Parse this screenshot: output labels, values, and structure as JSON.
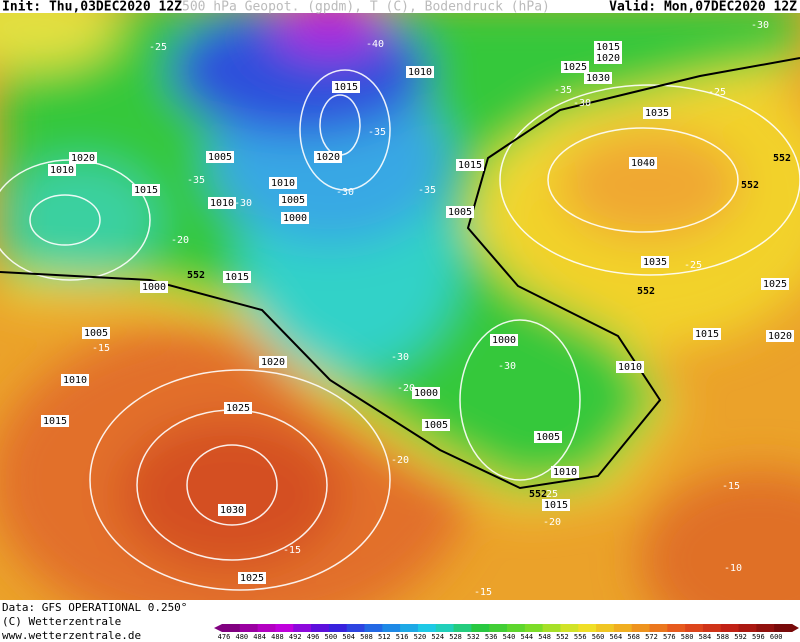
{
  "map": {
    "header": {
      "init": "Init: Thu,03DEC2020 12Z",
      "title": "500 hPa Geopot. (gpdm), T (C), Bodendruck (hPa)",
      "valid": "Valid: Mon,07DEC2020 12Z"
    },
    "pressure_labels": [
      1015,
      1020,
      1025,
      1030,
      1010,
      1015,
      1005,
      1020,
      1010,
      1005,
      1000,
      1010,
      1015,
      1010,
      1020,
      1015,
      1005,
      1035,
      1040,
      1035,
      1025,
      1020,
      1015,
      1010,
      1000,
      1000,
      1005,
      1005,
      1010,
      1015,
      1015,
      1000,
      1005,
      1010,
      1015,
      1020,
      1025,
      1030,
      1025
    ],
    "temperature_labels": [
      -25,
      -40,
      -35,
      -35,
      -30,
      -20,
      -30,
      -35,
      -15,
      -30,
      -30,
      -20,
      -25,
      -25,
      -30,
      -35,
      -30,
      -20,
      -20,
      -15,
      -10,
      -15,
      -15,
      -25
    ],
    "height_labels": [
      552,
      552,
      552,
      552,
      552
    ]
  },
  "footer": [
    "Data: GFS OPERATIONAL 0.250°",
    "(C) Wetterzentrale",
    "www.wetterzentrale.de"
  ],
  "colorbar": [
    476,
    480,
    484,
    488,
    492,
    496,
    500,
    504,
    508,
    512,
    516,
    520,
    524,
    528,
    532,
    536,
    540,
    544,
    548,
    552,
    556,
    560,
    564,
    568,
    572,
    576,
    580,
    584,
    588,
    592,
    596,
    600
  ]
}
